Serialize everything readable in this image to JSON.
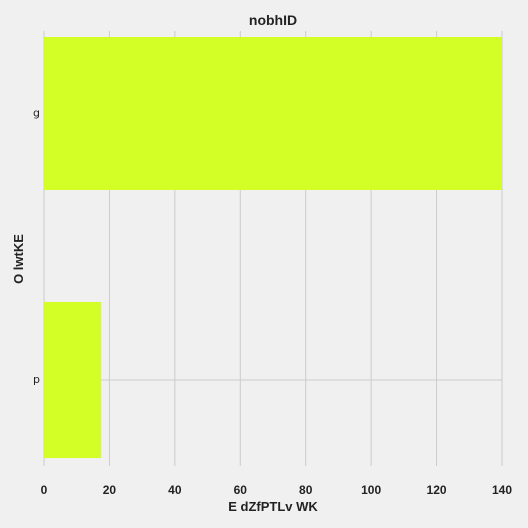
{
  "colors": {
    "background": "#f0f0f0",
    "bar": "#d4ff26",
    "grid": "#cbcbcb",
    "text": "#222222"
  },
  "chart_data": {
    "type": "bar",
    "orientation": "horizontal",
    "title": "nobhID",
    "xlabel": "E dZfPTLv WK",
    "ylabel": "O lwtKE",
    "categories": [
      "g",
      "p"
    ],
    "values": [
      140,
      17.5
    ],
    "xlim": [
      0,
      140
    ],
    "xticks": [
      0,
      20,
      40,
      60,
      80,
      100,
      120,
      140
    ],
    "grid": true,
    "legend": "none"
  }
}
